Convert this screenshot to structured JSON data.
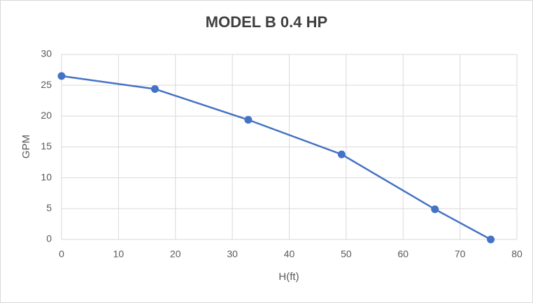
{
  "chart_data": {
    "type": "scatter",
    "title": "MODEL B 0.4 HP",
    "x_label": "H(ft)",
    "y_label": "GPM",
    "series": [
      {
        "name": "MODEL B 0.4 HP",
        "color": "#4472c4",
        "x": [
          0,
          16.4,
          32.8,
          49.2,
          65.6,
          75.4
        ],
        "values": [
          26.5,
          24.4,
          19.4,
          13.8,
          4.9,
          0
        ]
      }
    ],
    "xlim": [
      0,
      80
    ],
    "xticks": [
      0,
      10,
      20,
      30,
      40,
      50,
      60,
      70,
      80
    ],
    "ylim": [
      0,
      30
    ],
    "yticks": [
      0,
      5,
      10,
      15,
      20,
      25,
      30
    ],
    "grid": true,
    "lines": true
  }
}
